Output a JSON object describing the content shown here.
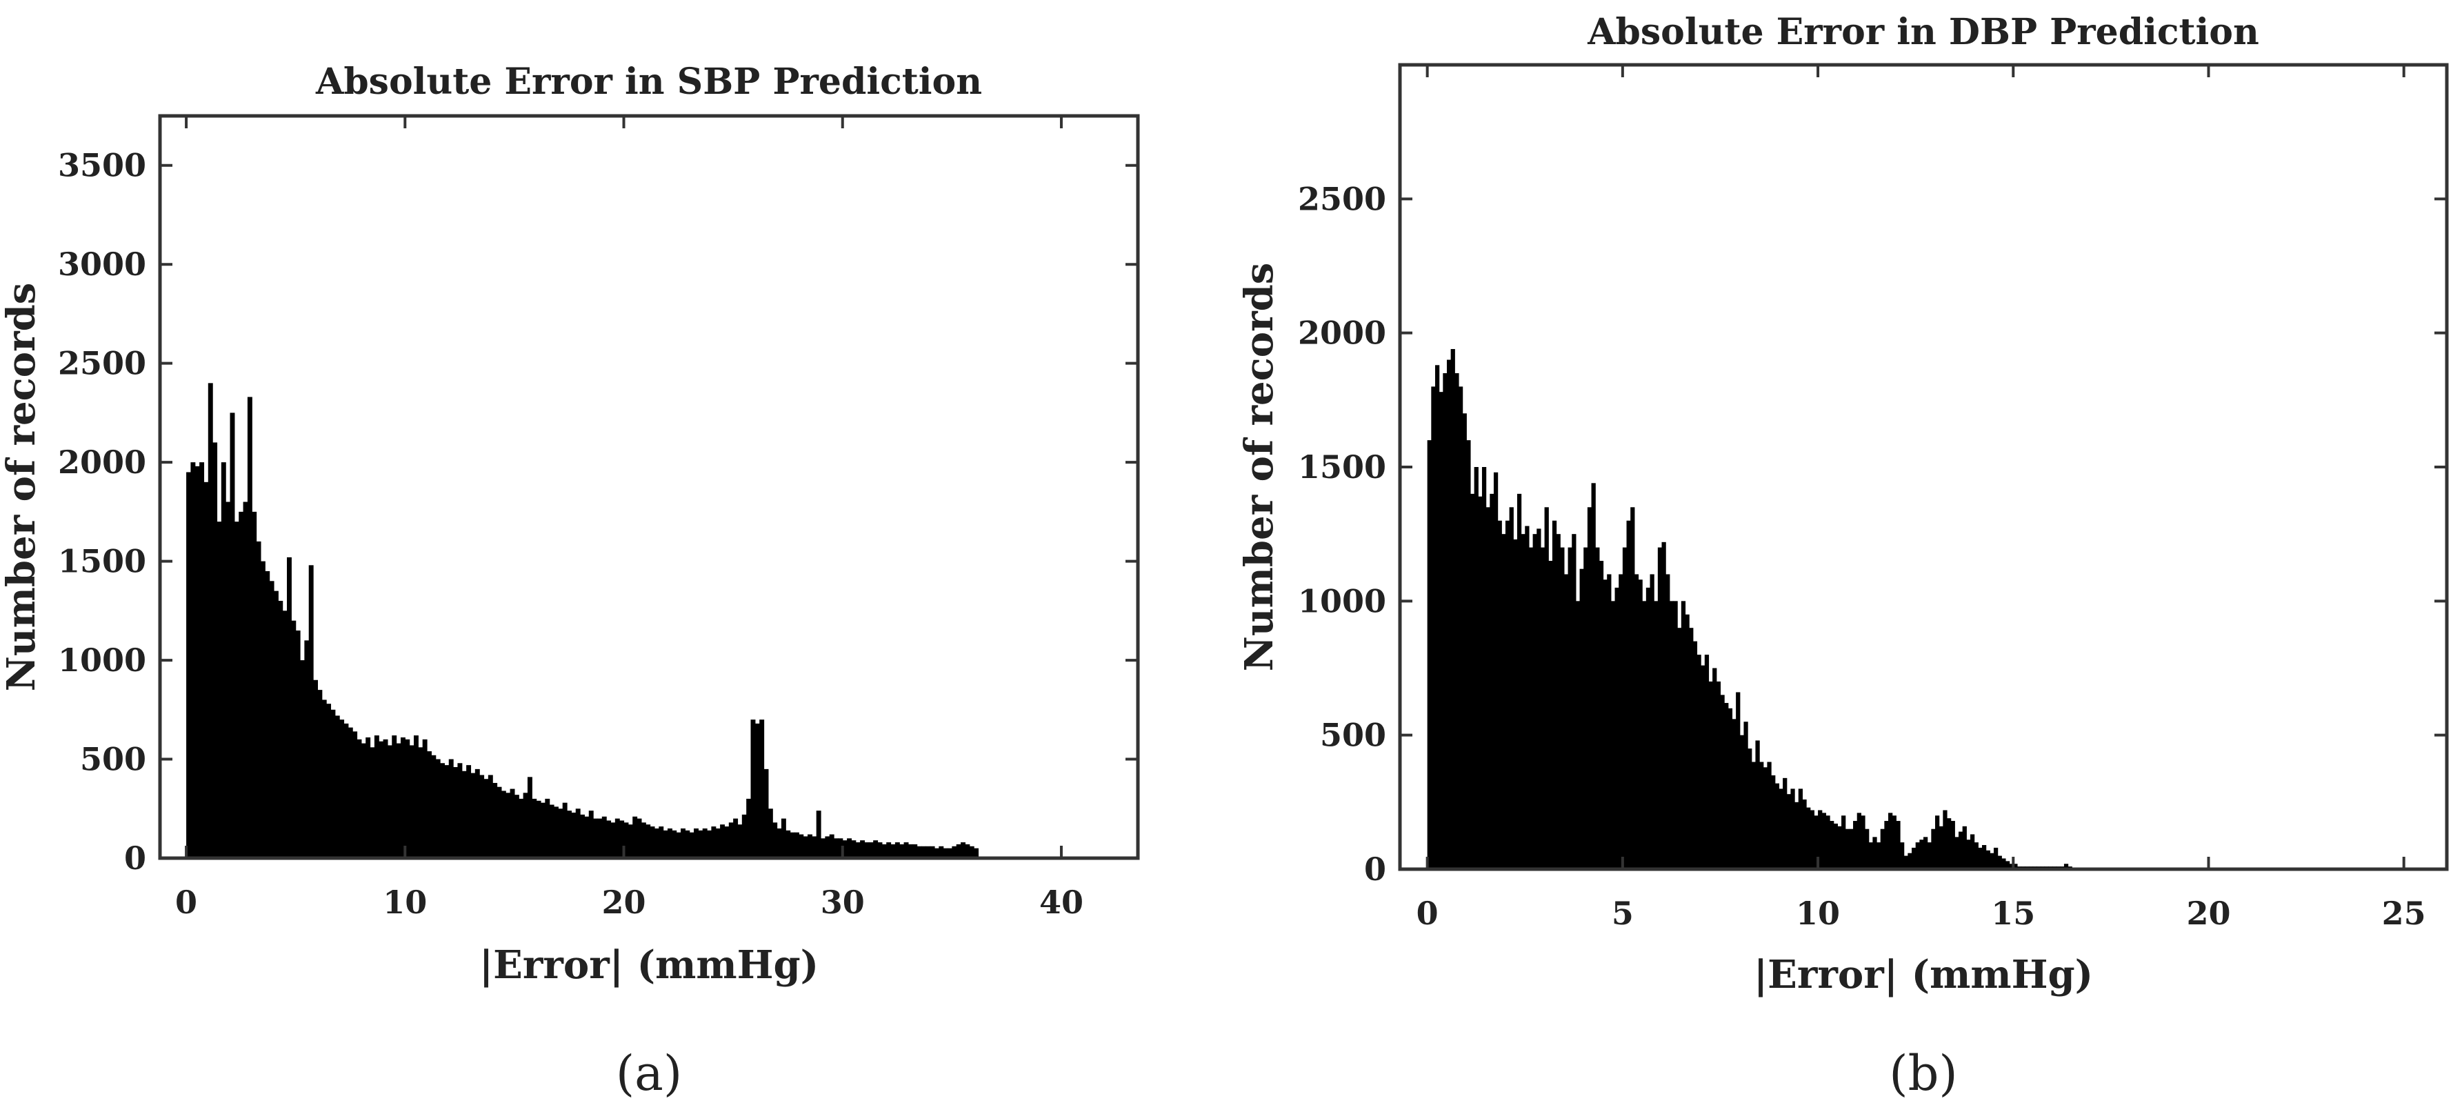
{
  "chart_data": [
    {
      "type": "bar",
      "panel_caption": "(a)",
      "title": "Absolute Error in SBP Prediction",
      "xlabel": "|Error| (mmHg)",
      "ylabel": "Number of records",
      "xlim": [
        -1.2,
        43.5
      ],
      "ylim": [
        0,
        3750
      ],
      "xticks": [
        0,
        10,
        20,
        30,
        40
      ],
      "xtick_labels": [
        "0",
        "10",
        "20",
        "30",
        "40"
      ],
      "yticks": [
        0,
        500,
        1000,
        1500,
        2000,
        2500,
        3000,
        3500
      ],
      "ytick_labels": [
        "0",
        "500",
        "1000",
        "1500",
        "2000",
        "2500",
        "3000",
        "3500"
      ],
      "bin_start": 0,
      "bin_width": 0.2,
      "grid": false,
      "bar_color": "#000000",
      "values": [
        1950,
        2000,
        1980,
        2000,
        1900,
        2400,
        2100,
        1700,
        2000,
        1800,
        2250,
        1700,
        1750,
        1800,
        2330,
        1750,
        1600,
        1500,
        1450,
        1400,
        1350,
        1300,
        1250,
        1520,
        1200,
        1150,
        1000,
        1100,
        1480,
        900,
        850,
        800,
        780,
        750,
        720,
        700,
        680,
        660,
        640,
        600,
        580,
        610,
        560,
        620,
        590,
        600,
        570,
        620,
        580,
        610,
        600,
        570,
        620,
        560,
        600,
        540,
        520,
        500,
        480,
        470,
        500,
        460,
        480,
        440,
        470,
        430,
        450,
        420,
        400,
        420,
        380,
        360,
        340,
        330,
        350,
        320,
        300,
        330,
        410,
        300,
        290,
        280,
        300,
        270,
        260,
        250,
        280,
        240,
        230,
        250,
        220,
        210,
        240,
        200,
        200,
        210,
        190,
        180,
        200,
        190,
        180,
        170,
        210,
        200,
        180,
        170,
        160,
        150,
        160,
        140,
        150,
        140,
        130,
        150,
        140,
        130,
        150,
        140,
        150,
        140,
        160,
        150,
        170,
        160,
        180,
        200,
        170,
        220,
        300,
        700,
        680,
        700,
        450,
        250,
        180,
        150,
        200,
        140,
        130,
        130,
        120,
        110,
        120,
        110,
        240,
        100,
        110,
        120,
        100,
        100,
        90,
        100,
        90,
        80,
        90,
        80,
        80,
        90,
        80,
        70,
        80,
        70,
        80,
        70,
        80,
        70,
        70,
        60,
        60,
        60,
        60,
        50,
        60,
        50,
        50,
        60,
        70,
        80,
        70,
        60,
        50,
        0
      ]
    },
    {
      "type": "bar",
      "panel_caption": "(b)",
      "title": "Absolute Error in DBP Prediction",
      "xlabel": "|Error| (mmHg)",
      "ylabel": "Number of records",
      "xlim": [
        -0.7,
        26.1
      ],
      "ylim": [
        0,
        3000
      ],
      "xticks": [
        0,
        5,
        10,
        15,
        20,
        25
      ],
      "xtick_labels": [
        "0",
        "5",
        "10",
        "15",
        "20",
        "25"
      ],
      "yticks": [
        0,
        500,
        1000,
        1500,
        2000,
        2500
      ],
      "ytick_labels": [
        "0",
        "500",
        "1000",
        "1500",
        "2000",
        "2500"
      ],
      "bin_start": 0,
      "bin_width": 0.1,
      "grid": false,
      "bar_color": "#000000",
      "values": [
        1600,
        1800,
        1880,
        1780,
        1850,
        1900,
        1940,
        1850,
        1800,
        1700,
        1600,
        1400,
        1500,
        1390,
        1500,
        1350,
        1400,
        1480,
        1300,
        1250,
        1300,
        1350,
        1230,
        1400,
        1250,
        1280,
        1200,
        1250,
        1270,
        1200,
        1350,
        1150,
        1300,
        1250,
        1200,
        1100,
        1200,
        1250,
        1000,
        1120,
        1200,
        1350,
        1440,
        1200,
        1150,
        1080,
        1100,
        1000,
        1050,
        1100,
        1200,
        1300,
        1350,
        1100,
        1080,
        1000,
        1050,
        1100,
        1000,
        1200,
        1220,
        1100,
        1000,
        1000,
        900,
        1000,
        950,
        900,
        850,
        800,
        760,
        800,
        700,
        750,
        700,
        650,
        620,
        600,
        560,
        660,
        500,
        550,
        450,
        400,
        480,
        400,
        380,
        400,
        350,
        320,
        300,
        340,
        280,
        300,
        250,
        300,
        260,
        230,
        220,
        200,
        220,
        210,
        200,
        180,
        170,
        160,
        200,
        150,
        150,
        180,
        210,
        200,
        150,
        100,
        120,
        100,
        150,
        180,
        210,
        200,
        180,
        100,
        50,
        60,
        80,
        100,
        110,
        120,
        100,
        150,
        200,
        160,
        220,
        190,
        180,
        120,
        140,
        160,
        110,
        130,
        100,
        80,
        90,
        70,
        60,
        80,
        50,
        40,
        30,
        20,
        20,
        10,
        10,
        10,
        10,
        10,
        10,
        10,
        10,
        10,
        10,
        10,
        10,
        20,
        10
      ]
    }
  ]
}
